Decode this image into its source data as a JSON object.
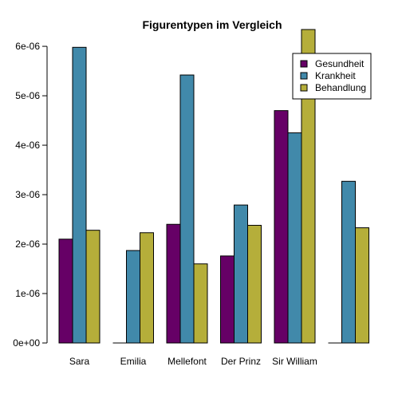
{
  "chart_data": {
    "type": "bar",
    "title": "Figurentypen im Vergleich",
    "xlabel": "",
    "ylabel": "",
    "categories": [
      "Sara",
      "Emilia",
      "Mellefont",
      "Der Prinz",
      "Sir William",
      ""
    ],
    "series": [
      {
        "name": "Gesundheit",
        "color": "#660066",
        "values": [
          2.1e-06,
          0,
          2.4e-06,
          1.76e-06,
          4.7e-06,
          0
        ]
      },
      {
        "name": "Krankheit",
        "color": "#4189AA",
        "values": [
          5.98e-06,
          1.87e-06,
          5.42e-06,
          2.79e-06,
          4.25e-06,
          3.27e-06
        ]
      },
      {
        "name": "Behandlung",
        "color": "#B5AE3A",
        "values": [
          2.28e-06,
          2.23e-06,
          1.6e-06,
          2.38e-06,
          6.34e-06,
          2.33e-06
        ]
      }
    ],
    "ylim": [
      0,
      6.34e-06
    ],
    "yticks": [
      0,
      1e-06,
      2e-06,
      3e-06,
      4e-06,
      5e-06,
      6e-06
    ],
    "ytick_labels": [
      "0e+00",
      "1e-06",
      "2e-06",
      "3e-06",
      "4e-06",
      "5e-06",
      "6e-06"
    ],
    "grid": false,
    "legend_position": "top-right"
  }
}
